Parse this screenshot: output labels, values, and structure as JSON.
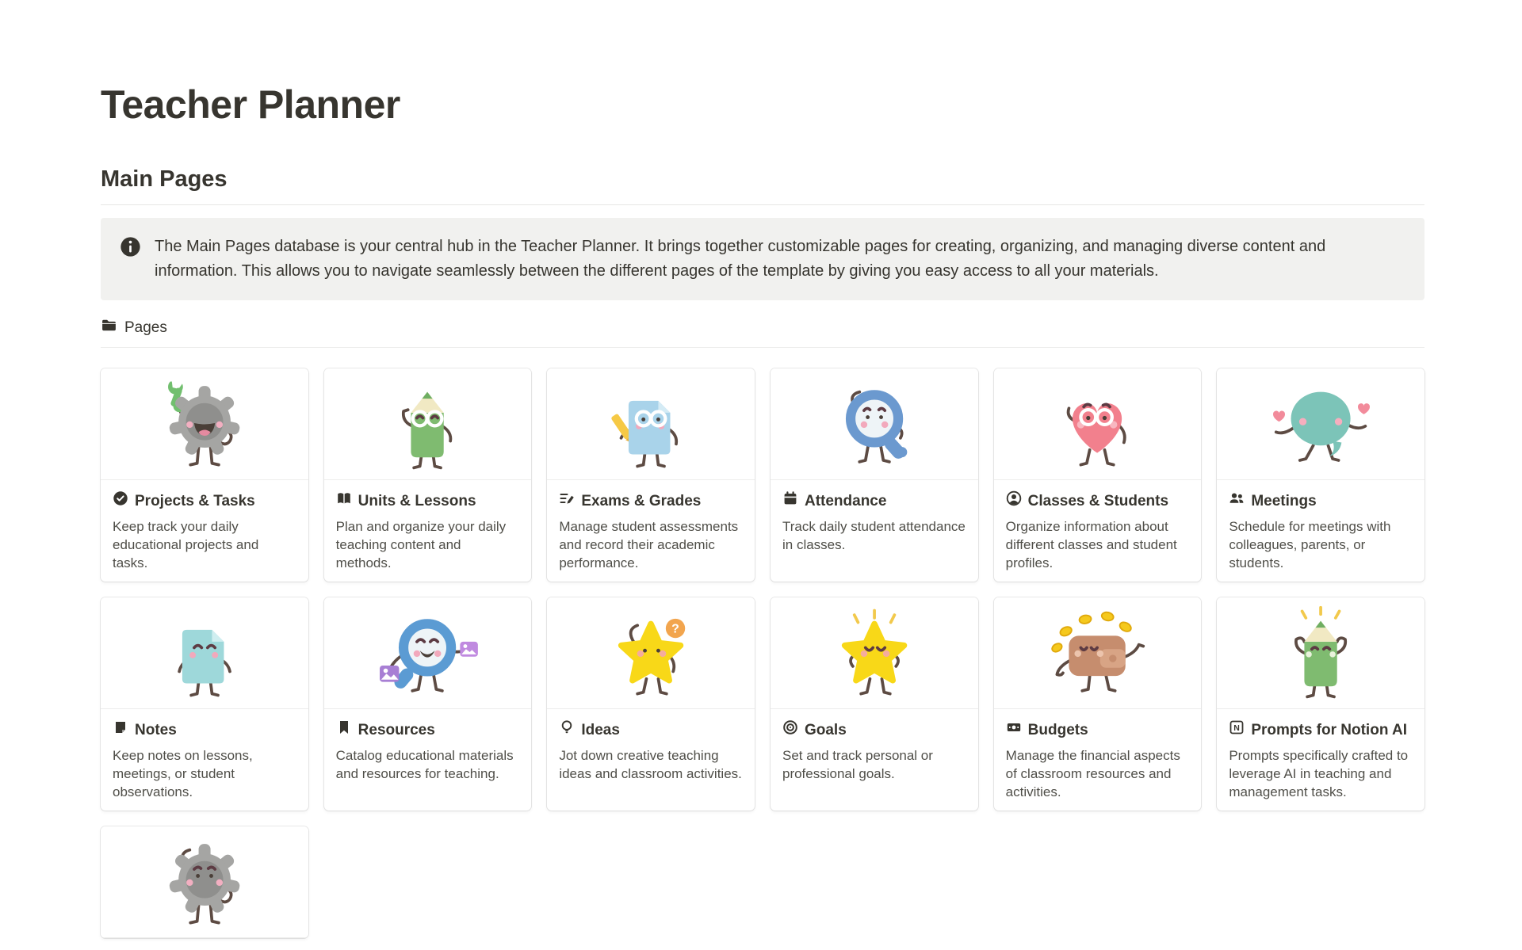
{
  "page": {
    "title": "Teacher Planner",
    "section_heading": "Main Pages",
    "callout_icon": "info-icon",
    "callout": "The Main Pages database is your central hub in the Teacher Planner. It brings  together customizable pages for creating, organizing, and managing diverse content and information. This allows you to navigate seamlessly between the different pages of the template by giving you easy access to all your materials.",
    "view_tab": {
      "icon": "folder-icon",
      "label": "Pages"
    }
  },
  "colors": {
    "text": "#37352f",
    "callout_background": "#f1f1ef",
    "card_border": "rgba(15,15,15,0.09)"
  },
  "cards": [
    {
      "icon": "check-circle-icon",
      "illustration": "gear-wrench-happy",
      "title": "Projects & Tasks",
      "description": "Keep track your daily educational projects and tasks."
    },
    {
      "icon": "open-book-icon",
      "illustration": "pencil-glasses-green",
      "title": "Units & Lessons",
      "description": "Plan and organize your daily teaching content and methods."
    },
    {
      "icon": "list-pencil-icon",
      "illustration": "paper-pencil-blue",
      "title": "Exams & Grades",
      "description": "Manage student assessments and record their academic performance."
    },
    {
      "icon": "calendar-icon",
      "illustration": "magnifier-worried-blue",
      "title": "Attendance",
      "description": "Track daily student attendance in classes."
    },
    {
      "icon": "person-circle-icon",
      "illustration": "heart-glasses-pink",
      "title": "Classes & Students",
      "description": "Organize information about different classes and student profiles."
    },
    {
      "icon": "people-icon",
      "illustration": "speech-bubble-kiss-teal",
      "title": "Meetings",
      "description": "Schedule for meetings with colleagues, parents, or students."
    },
    {
      "icon": "note-icon",
      "illustration": "paper-smile-blue",
      "title": "Notes",
      "description": "Keep notes on lessons, meetings, or student observations."
    },
    {
      "icon": "bookmark-icon",
      "illustration": "magnifier-photos-blue",
      "title": "Resources",
      "description": "Catalog educational materials and resources for teaching."
    },
    {
      "icon": "lightbulb-icon",
      "illustration": "star-question-yellow",
      "title": "Ideas",
      "description": "Jot down creative teaching ideas and classroom activities."
    },
    {
      "icon": "target-icon",
      "illustration": "star-proud-yellow",
      "title": "Goals",
      "description": "Set and track personal or professional goals."
    },
    {
      "icon": "banknote-icon",
      "illustration": "wallet-coins-brown",
      "title": "Budgets",
      "description": "Manage the financial aspects of classroom resources and activities."
    },
    {
      "icon": "notion-n-icon",
      "illustration": "pencil-flex-green",
      "title": "Prompts for Notion AI",
      "description": "Prompts specifically crafted to leverage AI in teaching and management tasks."
    },
    {
      "icon": null,
      "illustration": "gear-sad-gray",
      "title": null,
      "description": null
    }
  ]
}
